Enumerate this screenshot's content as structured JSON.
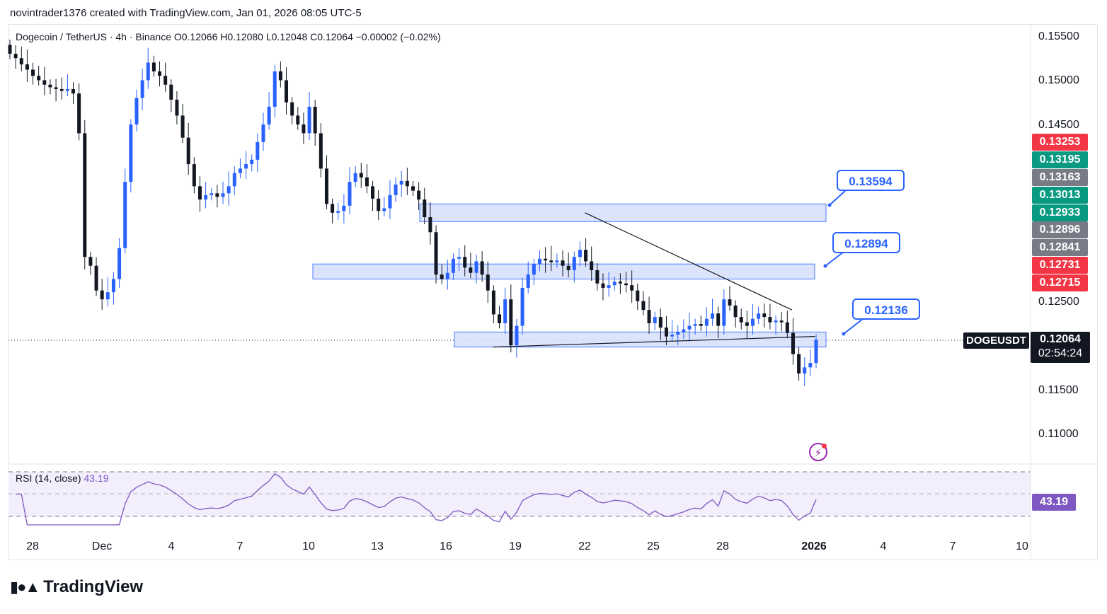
{
  "header": {
    "credit": "novintrader1376 created with TradingView.com, Jan 01, 2026 08:05 UTC-5"
  },
  "symbol": {
    "info": "Dogecoin / TetherUS · 4h · Binance  O0.12066  H0.12080  L0.12048  C0.12064  −0.00002 (−0.02%)",
    "ticker": "DOGEUSDT",
    "price": "0.12064",
    "countdown": "02:54:24"
  },
  "price_axis": {
    "labels": [
      "0.15500",
      "0.15000",
      "0.14500",
      "0.12500",
      "0.11500",
      "0.11000"
    ],
    "tags": [
      {
        "value": "0.13253",
        "color": "#f23645"
      },
      {
        "value": "0.13195",
        "color": "#089981"
      },
      {
        "value": "0.13163",
        "color": "#787b86"
      },
      {
        "value": "0.13013",
        "color": "#089981"
      },
      {
        "value": "0.12933",
        "color": "#089981"
      },
      {
        "value": "0.12896",
        "color": "#787b86"
      },
      {
        "value": "0.12841",
        "color": "#787b86"
      },
      {
        "value": "0.12731",
        "color": "#f23645"
      },
      {
        "value": "0.12715",
        "color": "#f23645"
      }
    ]
  },
  "time_axis": {
    "labels": [
      "28",
      "Dec",
      "4",
      "7",
      "10",
      "13",
      "16",
      "19",
      "22",
      "25",
      "28",
      "2026",
      "4",
      "7",
      "10"
    ]
  },
  "callouts": [
    {
      "value": "0.13594"
    },
    {
      "value": "0.12894"
    },
    {
      "value": "0.12136"
    }
  ],
  "rsi": {
    "label": "RSI (14, close)",
    "value": "43.19"
  },
  "logo": {
    "text": "TradingView"
  },
  "colors": {
    "up": "#2962ff",
    "down": "#131722",
    "zone_fill": "#d6e0fb",
    "zone_border": "#2962ff",
    "rsi_line": "#7e57c2",
    "rsi_band": "#f3eefb"
  },
  "icons": [
    "bolt-icon",
    "tradingview-logo-icon"
  ],
  "chart_data": {
    "type": "candlestick",
    "title": "Dogecoin / TetherUS · 4h · Binance",
    "y_axis_range": [
      0.105,
      0.158
    ],
    "x_range": [
      "2025-11-27",
      "2026-01-11"
    ],
    "zones": [
      {
        "label": "0.13594",
        "low": 0.134,
        "high": 0.136,
        "start": "2025-12-15",
        "end": "2025-12-31"
      },
      {
        "label": "0.12894",
        "low": 0.1275,
        "high": 0.1292,
        "start": "2025-12-10",
        "end": "2025-12-31"
      },
      {
        "label": "0.12136",
        "low": 0.1198,
        "high": 0.1215,
        "start": "2025-12-17",
        "end": "2025-12-31"
      }
    ],
    "trendlines": [
      {
        "from": [
          "2025-12-22",
          0.135
        ],
        "to": [
          "2025-12-31",
          0.124
        ]
      },
      {
        "from": [
          "2025-12-18",
          0.1198
        ],
        "to": [
          "2026-01-01",
          0.121
        ]
      }
    ],
    "last_close": 0.12064,
    "closes": [
      0.153,
      0.1525,
      0.1518,
      0.1512,
      0.1505,
      0.15,
      0.1495,
      0.1492,
      0.149,
      0.1488,
      0.149,
      0.1485,
      0.144,
      0.13,
      0.129,
      0.1262,
      0.1252,
      0.126,
      0.1275,
      0.131,
      0.1385,
      0.145,
      0.148,
      0.15,
      0.152,
      0.151,
      0.1505,
      0.1495,
      0.1478,
      0.146,
      0.1435,
      0.1405,
      0.138,
      0.1365,
      0.137,
      0.1372,
      0.1368,
      0.1372,
      0.138,
      0.1395,
      0.14,
      0.1405,
      0.141,
      0.143,
      0.145,
      0.147,
      0.151,
      0.15,
      0.1475,
      0.146,
      0.145,
      0.144,
      0.147,
      0.144,
      0.14,
      0.136,
      0.135,
      0.1352,
      0.1358,
      0.1385,
      0.1395,
      0.139,
      0.138,
      0.1366,
      0.1352,
      0.1355,
      0.137,
      0.1382,
      0.1386,
      0.138,
      0.1375,
      0.1365,
      0.1345,
      0.1328,
      0.128,
      0.1275,
      0.1282,
      0.1298,
      0.13,
      0.1288,
      0.1282,
      0.1295,
      0.128,
      0.1262,
      0.1235,
      0.1225,
      0.1252,
      0.12,
      0.1222,
      0.1265,
      0.128,
      0.1292,
      0.1298,
      0.1296,
      0.1294,
      0.1296,
      0.129,
      0.1285,
      0.13,
      0.1308,
      0.1295,
      0.1285,
      0.127,
      0.1265,
      0.1268,
      0.1272,
      0.127,
      0.1268,
      0.1262,
      0.125,
      0.124,
      0.1225,
      0.1232,
      0.122,
      0.121,
      0.1212,
      0.1215,
      0.1218,
      0.1222,
      0.1224,
      0.1222,
      0.123,
      0.1236,
      0.1222,
      0.1252,
      0.1245,
      0.1232,
      0.1226,
      0.1222,
      0.123,
      0.1236,
      0.1232,
      0.1226,
      0.1228,
      0.1226,
      0.1214,
      0.119,
      0.1168,
      0.1175,
      0.118,
      0.12064
    ]
  }
}
